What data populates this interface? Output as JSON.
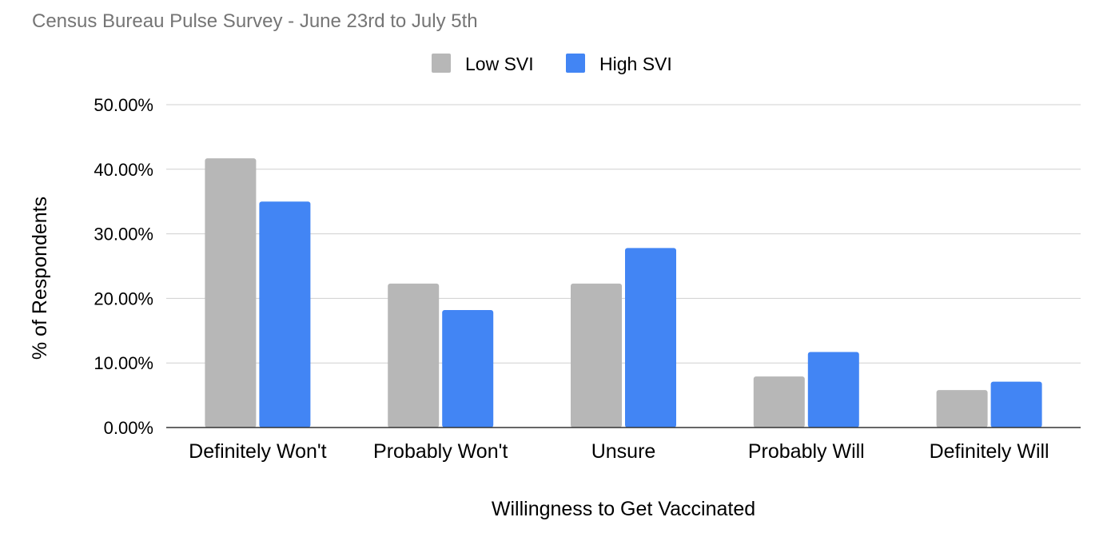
{
  "chart_data": {
    "type": "bar",
    "title": "Census Bureau Pulse Survey - June 23rd to July 5th",
    "xlabel": "Willingness to Get Vaccinated",
    "ylabel": "% of Respondents",
    "categories": [
      "Definitely Won't",
      "Probably Won't",
      "Unsure",
      "Probably Will",
      "Definitely Will"
    ],
    "series": [
      {
        "name": "Low SVI",
        "color": "#b7b7b7",
        "values": [
          41.7,
          22.3,
          22.3,
          7.9,
          5.8
        ]
      },
      {
        "name": "High SVI",
        "color": "#4285f4",
        "values": [
          35.0,
          18.2,
          27.8,
          11.7,
          7.1
        ]
      }
    ],
    "ylim": [
      0,
      50
    ],
    "yticks": [
      0,
      10,
      20,
      30,
      40,
      50
    ],
    "ytick_labels": [
      "0.00%",
      "10.00%",
      "20.00%",
      "30.00%",
      "40.00%",
      "50.00%"
    ],
    "grid": true,
    "legend_position": "top-center"
  }
}
